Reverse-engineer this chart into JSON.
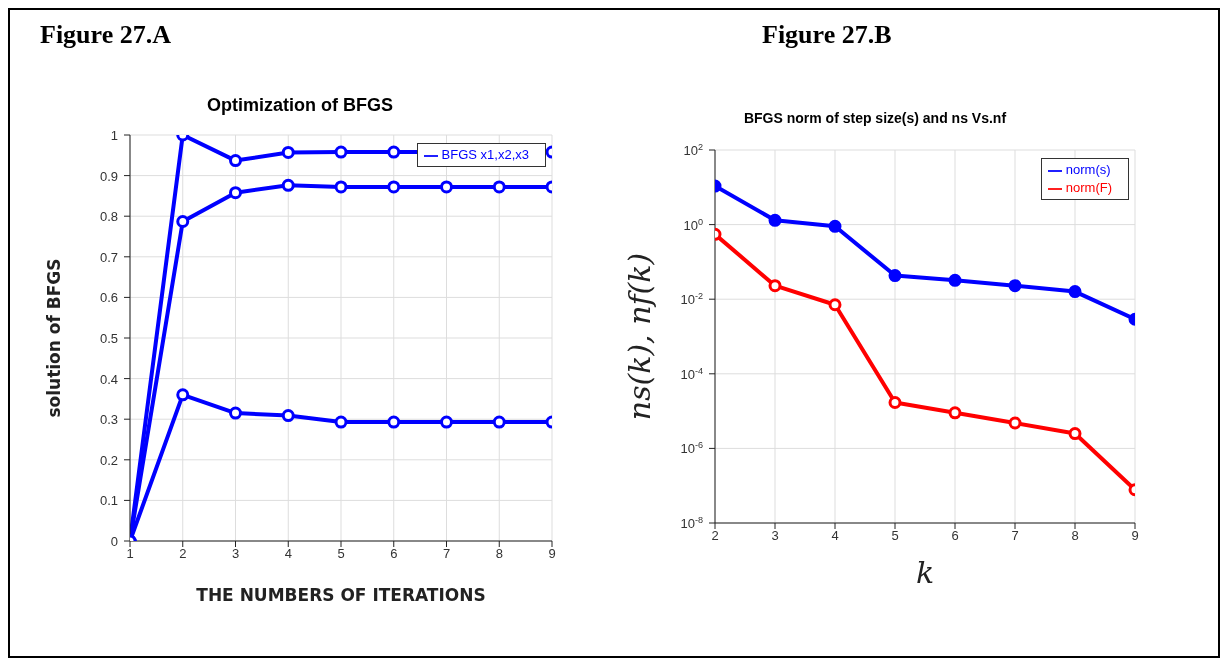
{
  "chart_data": [
    {
      "type": "line",
      "title": "Optimization of BFGS",
      "xlabel": "THE NUMBERS OF ITERATIONS",
      "ylabel": "solution of BFGS",
      "annotations": [
        "Figure 27.A"
      ],
      "x": [
        1,
        2,
        3,
        4,
        5,
        6,
        7,
        8,
        9
      ],
      "series": [
        {
          "name": "BFGS x1,x2,x3",
          "color": "#0000ff",
          "values": [
            0,
            1.0,
            0.937,
            0.957,
            0.958,
            0.958,
            0.958,
            0.958,
            0.958
          ]
        },
        {
          "color": "#0000ff",
          "values": [
            0,
            0.787,
            0.858,
            0.876,
            0.872,
            0.872,
            0.872,
            0.872,
            0.872
          ]
        },
        {
          "color": "#0000ff",
          "values": [
            0,
            0.36,
            0.315,
            0.309,
            0.293,
            0.293,
            0.293,
            0.293,
            0.293
          ]
        }
      ],
      "xlim": [
        1,
        9
      ],
      "xticks": [
        1,
        2,
        3,
        4,
        5,
        6,
        7,
        8,
        9
      ],
      "ylim": [
        0,
        1
      ],
      "yticks": [
        0,
        0.1,
        0.2,
        0.3,
        0.4,
        0.5,
        0.6,
        0.7,
        0.8,
        0.9,
        1
      ],
      "grid": true,
      "legend": "top right",
      "marker": "circle",
      "line_style": "solid"
    },
    {
      "type": "line",
      "title": "BFGS norm of step size(s) and ns Vs.nf",
      "xlabel": "k",
      "ylabel": "ns(k), nf(k)",
      "annotations": [
        "Figure 27.B"
      ],
      "x": [
        2,
        3,
        4,
        5,
        6,
        7,
        8,
        9
      ],
      "series": [
        {
          "name": "norm(s)",
          "color": "#0000ff",
          "values": [
            10.8,
            1.3,
            0.9,
            0.043,
            0.032,
            0.023,
            0.016,
            0.0029
          ]
        },
        {
          "name": "norm(F)",
          "color": "#ff0000",
          "values": [
            0.55,
            0.023,
            0.0071,
            1.7e-05,
            9e-06,
            4.8e-06,
            2.5e-06,
            7.8e-08
          ]
        }
      ],
      "xlim": [
        2,
        9
      ],
      "xticks": [
        2,
        3,
        4,
        5,
        6,
        7,
        8,
        9
      ],
      "ylim": [
        1e-08,
        100
      ],
      "yticks": [
        {
          "value": 1e-08,
          "label": "10$^{-8}$"
        },
        {
          "value": 1e-06,
          "label": "10$^{-6}$"
        },
        {
          "value": 0.0001,
          "label": "10$^{-4}$"
        },
        {
          "value": 0.01,
          "label": "10$^{-2}$"
        },
        {
          "value": 1,
          "label": "10$^{0}$"
        },
        {
          "value": 100,
          "label": "10$^{2}$"
        }
      ],
      "log": "y",
      "grid": true,
      "legend": "top right",
      "marker": "circle",
      "line_style": "solid"
    }
  ]
}
